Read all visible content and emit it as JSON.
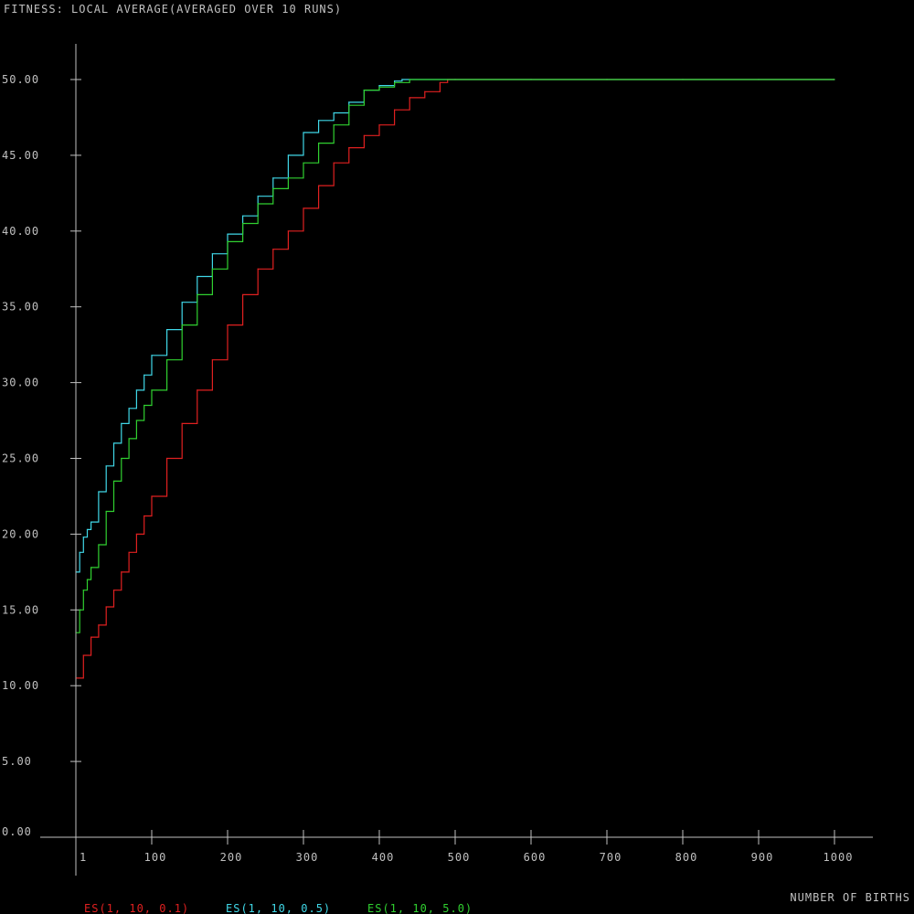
{
  "chart_data": {
    "type": "line",
    "title": "FITNESS: LOCAL AVERAGE(AVERAGED OVER 10 RUNS)",
    "xlabel": "NUMBER OF BIRTHS",
    "ylabel": "",
    "xlim": [
      0,
      1000
    ],
    "ylim": [
      0,
      50
    ],
    "x_ticks": [
      1,
      100,
      200,
      300,
      400,
      500,
      600,
      700,
      800,
      900,
      1000
    ],
    "x_tick_labels": [
      "1",
      "100",
      "200",
      "300",
      "400",
      "500",
      "600",
      "700",
      "800",
      "900",
      "1000"
    ],
    "y_ticks": [
      0,
      5,
      10,
      15,
      20,
      25,
      30,
      35,
      40,
      45,
      50
    ],
    "y_tick_labels": [
      "0.00",
      "5.00",
      "10.00",
      "15.00",
      "20.00",
      "25.00",
      "30.00",
      "35.00",
      "40.00",
      "45.00",
      "50.00"
    ],
    "grid": false,
    "legend_position": "bottom-left",
    "axis_color": "#c0c0c0",
    "text_color": "#c0c0c0",
    "series": [
      {
        "name": "ES(1, 10, 0.1)",
        "color": "#e02020",
        "x": [
          1,
          10,
          20,
          30,
          40,
          50,
          60,
          70,
          80,
          90,
          100,
          120,
          140,
          160,
          180,
          200,
          220,
          240,
          260,
          280,
          300,
          320,
          340,
          360,
          380,
          400,
          420,
          440,
          460,
          480,
          490,
          500,
          600,
          700,
          800,
          900,
          1000
        ],
        "values": [
          10.5,
          12.0,
          13.2,
          14.0,
          15.2,
          16.3,
          17.5,
          18.8,
          20.0,
          21.2,
          22.5,
          25.0,
          27.3,
          29.5,
          31.5,
          33.8,
          35.8,
          37.5,
          38.8,
          40.0,
          41.5,
          43.0,
          44.5,
          45.5,
          46.3,
          47.0,
          48.0,
          48.8,
          49.2,
          49.8,
          50.0,
          50.0,
          50.0,
          50.0,
          50.0,
          50.0,
          50.0
        ]
      },
      {
        "name": "ES(1, 10, 0.5)",
        "color": "#40d8e8",
        "x": [
          1,
          5,
          10,
          15,
          20,
          30,
          40,
          50,
          60,
          70,
          80,
          90,
          100,
          120,
          140,
          160,
          180,
          200,
          220,
          240,
          260,
          280,
          300,
          320,
          340,
          360,
          380,
          400,
          420,
          430,
          440,
          500,
          600,
          700,
          800,
          900,
          1000
        ],
        "values": [
          17.5,
          18.8,
          19.8,
          20.3,
          20.8,
          22.8,
          24.5,
          26.0,
          27.3,
          28.3,
          29.5,
          30.5,
          31.8,
          33.5,
          35.3,
          37.0,
          38.5,
          39.8,
          41.0,
          42.3,
          43.5,
          45.0,
          46.5,
          47.3,
          47.8,
          48.5,
          49.3,
          49.6,
          49.9,
          50.0,
          50.0,
          50.0,
          50.0,
          50.0,
          50.0,
          50.0,
          50.0
        ]
      },
      {
        "name": "ES(1, 10, 5.0)",
        "color": "#30d030",
        "x": [
          1,
          5,
          10,
          15,
          20,
          30,
          40,
          50,
          60,
          70,
          80,
          90,
          100,
          120,
          140,
          160,
          180,
          200,
          220,
          240,
          260,
          280,
          300,
          320,
          340,
          360,
          380,
          400,
          420,
          440,
          500,
          600,
          700,
          800,
          900,
          1000
        ],
        "values": [
          13.5,
          15.0,
          16.3,
          17.0,
          17.8,
          19.3,
          21.5,
          23.5,
          25.0,
          26.3,
          27.5,
          28.5,
          29.5,
          31.5,
          33.8,
          35.8,
          37.5,
          39.3,
          40.5,
          41.8,
          42.8,
          43.5,
          44.5,
          45.8,
          47.0,
          48.3,
          49.3,
          49.5,
          49.8,
          50.0,
          50.0,
          50.0,
          50.0,
          50.0,
          50.0,
          50.0
        ]
      }
    ]
  }
}
